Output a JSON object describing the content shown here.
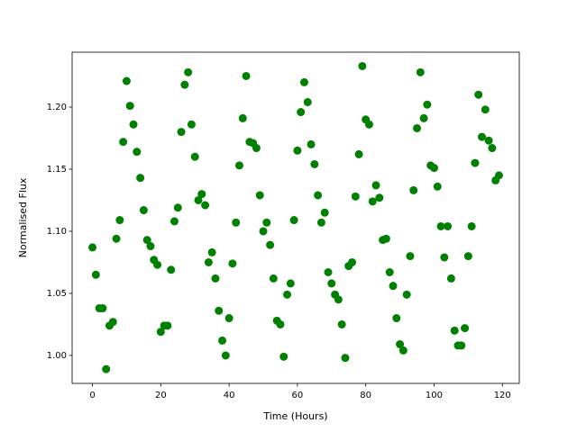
{
  "chart_data": {
    "type": "scatter",
    "xlabel": "Time (Hours)",
    "ylabel": "Normalised Flux",
    "color": "#008000",
    "grid": false,
    "xlim": [
      -5.95,
      124.95
    ],
    "ylim": [
      0.9775,
      1.2442
    ],
    "xticks": [
      0,
      20,
      40,
      60,
      80,
      100,
      120
    ],
    "yticks": [
      {
        "value": 1.0,
        "label": "1.00"
      },
      {
        "value": 1.05,
        "label": "1.05"
      },
      {
        "value": 1.1,
        "label": "1.10"
      },
      {
        "value": 1.15,
        "label": "1.15"
      },
      {
        "value": 1.2,
        "label": "1.20"
      }
    ],
    "x": [
      0,
      1,
      2,
      3,
      4,
      5,
      6,
      7,
      8,
      9,
      10,
      11,
      12,
      13,
      14,
      15,
      16,
      17,
      18,
      19,
      20,
      21,
      22,
      23,
      24,
      25,
      26,
      27,
      28,
      29,
      30,
      31,
      32,
      33,
      34,
      35,
      36,
      37,
      38,
      39,
      40,
      41,
      42,
      43,
      44,
      45,
      46,
      47,
      48,
      49,
      50,
      51,
      52,
      53,
      54,
      55,
      56,
      57,
      58,
      59,
      60,
      61,
      62,
      63,
      64,
      65,
      66,
      67,
      68,
      69,
      70,
      71,
      72,
      73,
      74,
      75,
      76,
      77,
      78,
      79,
      80,
      81,
      82,
      83,
      84,
      85,
      86,
      87,
      88,
      89,
      90,
      91,
      92,
      93,
      94,
      95,
      96,
      97,
      98,
      99,
      100,
      101,
      102,
      103,
      104,
      105,
      106,
      107,
      108,
      109,
      110,
      111,
      112,
      113,
      114,
      115,
      116,
      117,
      118,
      119
    ],
    "values": [
      1.087,
      1.065,
      1.038,
      1.038,
      0.989,
      1.024,
      1.027,
      1.094,
      1.109,
      1.172,
      1.221,
      1.201,
      1.186,
      1.164,
      1.143,
      1.117,
      1.093,
      1.088,
      1.077,
      1.073,
      1.019,
      1.024,
      1.024,
      1.069,
      1.108,
      1.119,
      1.18,
      1.218,
      1.228,
      1.186,
      1.16,
      1.125,
      1.13,
      1.121,
      1.075,
      1.083,
      1.062,
      1.036,
      1.012,
      1.0,
      1.03,
      1.074,
      1.107,
      1.153,
      1.191,
      1.225,
      1.172,
      1.171,
      1.167,
      1.129,
      1.1,
      1.107,
      1.089,
      1.062,
      1.028,
      1.025,
      0.999,
      1.049,
      1.058,
      1.109,
      1.165,
      1.196,
      1.22,
      1.204,
      1.17,
      1.154,
      1.129,
      1.107,
      1.115,
      1.067,
      1.058,
      1.049,
      1.045,
      1.025,
      0.998,
      1.072,
      1.075,
      1.128,
      1.162,
      1.233,
      1.19,
      1.186,
      1.124,
      1.137,
      1.127,
      1.093,
      1.094,
      1.067,
      1.056,
      1.03,
      1.009,
      1.004,
      1.049,
      1.08,
      1.133,
      1.183,
      1.228,
      1.191,
      1.202,
      1.153,
      1.151,
      1.136,
      1.104,
      1.079,
      1.104,
      1.062,
      1.02,
      1.008,
      1.008,
      1.022,
      1.08,
      1.104,
      1.155,
      1.21,
      1.176,
      1.198,
      1.173,
      1.167,
      1.141,
      1.145
    ]
  }
}
